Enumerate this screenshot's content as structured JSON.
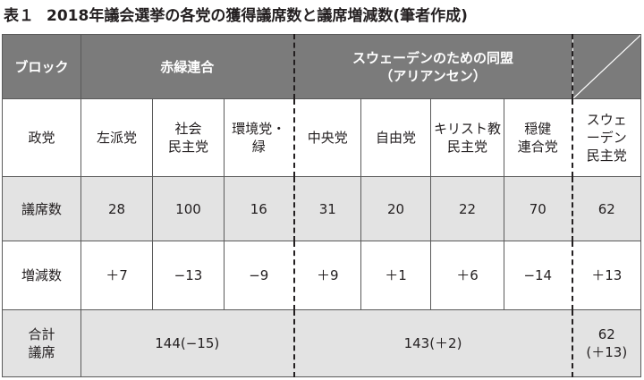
{
  "caption": {
    "number": "表１",
    "title": "2018年議会選挙の各党の獲得議席数と議席増減数(筆者作成)"
  },
  "header": {
    "block_label": "ブロック",
    "red_green": "赤緑連合",
    "alliance": "スウェーデンのための同盟\n（アリアンセン）"
  },
  "rows": {
    "party_label": "政党",
    "parties": [
      "左派党",
      "社会\n民主党",
      "環境党・\n緑",
      "中央党",
      "自由党",
      "キリスト教\n民主党",
      "穏健\n連合党",
      "スウェ\nーデン\n民主党"
    ],
    "seats_label": "議席数",
    "seats": [
      "28",
      "100",
      "16",
      "31",
      "20",
      "22",
      "70",
      "62"
    ],
    "change_label": "増減数",
    "changes": [
      "＋7",
      "−13",
      "−9",
      "＋9",
      "＋1",
      "＋6",
      "−14",
      "＋13"
    ],
    "total_label": "合計\n議席",
    "totals": [
      "144(−15)",
      "143(＋2)",
      "62\n(＋13)"
    ]
  }
}
